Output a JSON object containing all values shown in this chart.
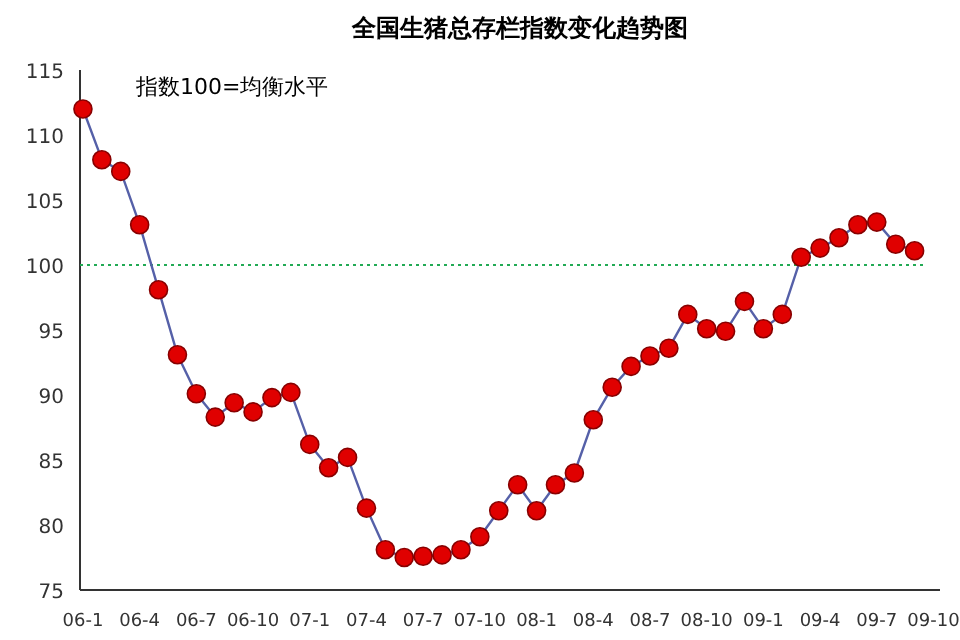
{
  "chart_data": {
    "type": "line",
    "title": "全国生猪总存栏指数变化趋势图",
    "categories": [
      "06-1",
      null,
      null,
      "06-4",
      null,
      null,
      "06-7",
      null,
      null,
      "06-10",
      null,
      null,
      "07-1",
      null,
      null,
      "07-4",
      null,
      null,
      "07-7",
      null,
      null,
      "07-10",
      null,
      null,
      "08-1",
      null,
      null,
      "08-4",
      null,
      null,
      "08-7",
      null,
      null,
      "08-10",
      null,
      null,
      "09-1",
      null,
      null,
      "09-4",
      null,
      null,
      "09-7",
      null,
      null,
      "09-10"
    ],
    "series": [
      {
        "color": "#e00000",
        "values": [
          112.0,
          108.1,
          107.2,
          103.1,
          98.1,
          93.1,
          90.1,
          88.3,
          89.4,
          88.7,
          89.8,
          90.2,
          86.2,
          84.4,
          85.2,
          81.3,
          78.1,
          77.5,
          77.6,
          77.7,
          78.1,
          79.1,
          81.1,
          83.1,
          81.1,
          83.1,
          84.0,
          88.1,
          90.6,
          92.2,
          93.0,
          93.6,
          96.2,
          95.1,
          94.9,
          97.2,
          95.1,
          96.2,
          100.6,
          101.3,
          102.1,
          103.1,
          103.3,
          101.6,
          101.1,
          null
        ]
      }
    ],
    "ylim": [
      75,
      115
    ],
    "yticks": [
      75,
      80,
      85,
      90,
      95,
      100,
      105,
      110,
      115
    ],
    "ref_lines": [
      {
        "axis": "y",
        "value": 100,
        "color": "#22aa55",
        "line_style": "dotted"
      }
    ],
    "annotations": [
      "指数100=均衡水平"
    ],
    "marker": "circle",
    "line_style": "solid",
    "grid": false
  }
}
